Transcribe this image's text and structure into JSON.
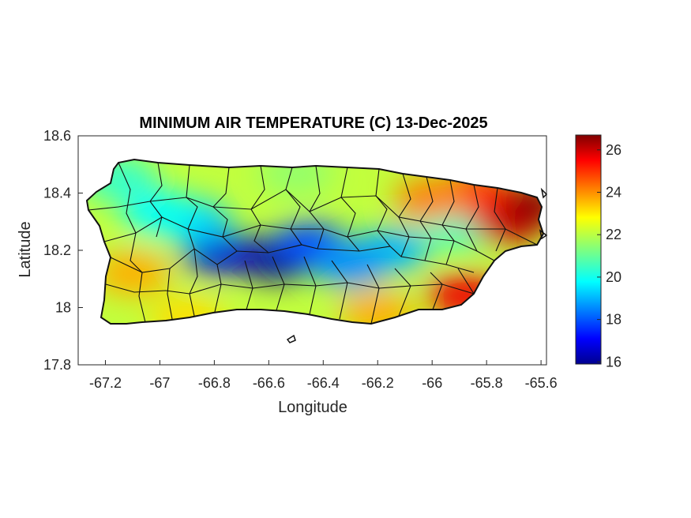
{
  "chart_data": {
    "type": "heatmap",
    "title": "MINIMUM AIR TEMPERATURE (C) 13-Dec-2025",
    "xlabel": "Longitude",
    "ylabel": "Latitude",
    "xlim": [
      -67.3,
      -65.58
    ],
    "ylim": [
      17.8,
      18.6
    ],
    "x_ticks": [
      -67.2,
      -67,
      -66.8,
      -66.6,
      -66.4,
      -66.2,
      -66,
      -65.8,
      -65.6
    ],
    "x_tick_labels": [
      "-67.2",
      "-67",
      "-66.8",
      "-66.6",
      "-66.4",
      "-66.2",
      "-66",
      "-65.8",
      "-65.6"
    ],
    "y_ticks": [
      17.8,
      18,
      18.2,
      18.4,
      18.6
    ],
    "y_tick_labels": [
      "17.8",
      "18",
      "18.2",
      "18.4",
      "18.6"
    ],
    "colorbar": {
      "colormap": "jet",
      "range": [
        15.9,
        26.7
      ],
      "ticks": [
        16,
        18,
        20,
        22,
        24,
        26
      ],
      "tick_labels": [
        "16",
        "18",
        "20",
        "22",
        "24",
        "26"
      ]
    },
    "grid": false,
    "temperature_field_hotspots": [
      {
        "lon": -66.57,
        "lat": 18.17,
        "value": 16.0
      },
      {
        "lon": -66.78,
        "lat": 18.19,
        "value": 16.8
      },
      {
        "lon": -66.45,
        "lat": 18.22,
        "value": 18.0
      },
      {
        "lon": -66.88,
        "lat": 18.3,
        "value": 19.5
      },
      {
        "lon": -66.15,
        "lat": 18.2,
        "value": 19.2
      },
      {
        "lon": -66.3,
        "lat": 18.15,
        "value": 18.8
      },
      {
        "lon": -67.0,
        "lat": 18.33,
        "value": 20.0
      },
      {
        "lon": -65.9,
        "lat": 18.28,
        "value": 20.5
      },
      {
        "lon": -65.72,
        "lat": 18.3,
        "value": 25.8
      },
      {
        "lon": -65.65,
        "lat": 18.36,
        "value": 26.5
      },
      {
        "lon": -65.85,
        "lat": 18.4,
        "value": 25.0
      },
      {
        "lon": -65.88,
        "lat": 18.04,
        "value": 25.5
      },
      {
        "lon": -66.0,
        "lat": 18.38,
        "value": 24.0
      },
      {
        "lon": -67.1,
        "lat": 18.12,
        "value": 23.5
      },
      {
        "lon": -66.9,
        "lat": 17.96,
        "value": 23.0
      },
      {
        "lon": -66.2,
        "lat": 17.98,
        "value": 23.5
      },
      {
        "lon": -66.5,
        "lat": 18.47,
        "value": 21.5
      },
      {
        "lon": -67.15,
        "lat": 18.45,
        "value": 20.5
      }
    ]
  }
}
